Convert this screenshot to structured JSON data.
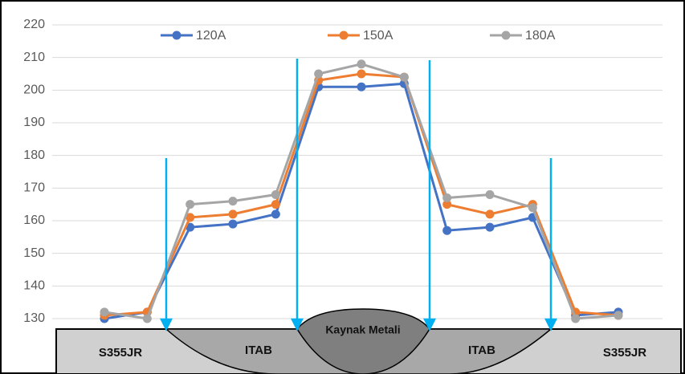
{
  "chart_data": {
    "type": "line",
    "categories": [
      null,
      null,
      null,
      null,
      null,
      null,
      null,
      null,
      null,
      null,
      null,
      null,
      null
    ],
    "series": [
      {
        "name": "120A",
        "color": "#4472c4",
        "values": [
          130,
          132,
          158,
          159,
          162,
          201,
          201,
          202,
          157,
          158,
          161,
          131,
          132
        ]
      },
      {
        "name": "150A",
        "color": "#ed7d31",
        "values": [
          131,
          132,
          161,
          162,
          165,
          203,
          205,
          204,
          165,
          162,
          165,
          132,
          131
        ]
      },
      {
        "name": "180A",
        "color": "#a5a5a5",
        "values": [
          132,
          130,
          165,
          166,
          168,
          205,
          208,
          204,
          167,
          168,
          164,
          130,
          131
        ]
      }
    ],
    "ylim": [
      130,
      220
    ],
    "yticks": [
      130,
      140,
      150,
      160,
      170,
      180,
      190,
      200,
      210,
      220
    ],
    "grid": true,
    "legend": "top"
  },
  "diagram": {
    "zones": [
      "S355JR",
      "ITAB",
      "Kaynak Metali",
      "ITAB",
      "S355JR"
    ]
  }
}
